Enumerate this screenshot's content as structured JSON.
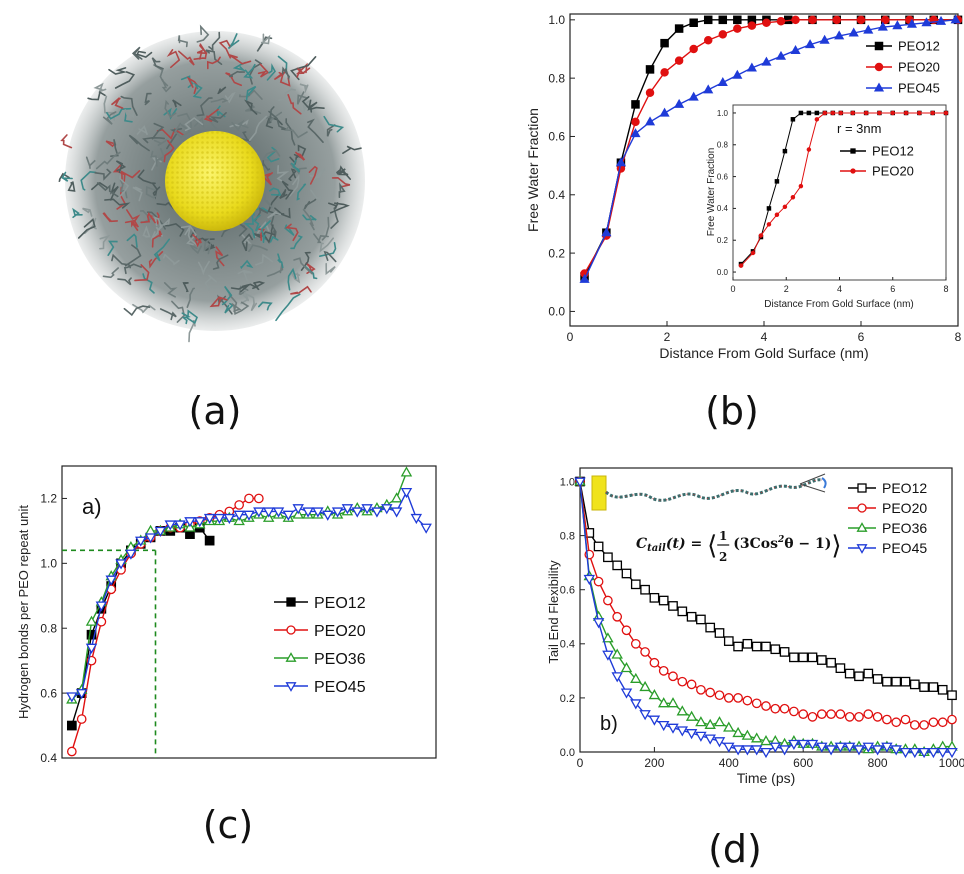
{
  "panels": {
    "a": {
      "label": "(a)",
      "image": "gold-nanoparticle-with-peo-chains"
    },
    "b": {
      "label": "(b)"
    },
    "c": {
      "label": "(c)"
    },
    "d": {
      "label": "(d)"
    }
  },
  "chart_data": [
    {
      "id": "b",
      "type": "line",
      "xlabel": "Distance From Gold Surface (nm)",
      "ylabel": "Free Water Fraction",
      "xlim": [
        0,
        8
      ],
      "ylim": [
        -0.05,
        1.02
      ],
      "xticks": [
        "0",
        "2",
        "4",
        "6",
        "8"
      ],
      "yticks": [
        "0.0",
        "0.2",
        "0.4",
        "0.6",
        "0.8",
        "1.0"
      ],
      "legend": "top-right",
      "series": [
        {
          "name": "PEO12",
          "color": "#000000",
          "marker": "square",
          "x": [
            0.3,
            0.75,
            1.05,
            1.35,
            1.65,
            1.95,
            2.25,
            2.55,
            2.85,
            3.15,
            3.45,
            3.75,
            4.05,
            4.5,
            5,
            5.5,
            6,
            6.5,
            7,
            7.5,
            8
          ],
          "y": [
            0.12,
            0.27,
            0.51,
            0.71,
            0.83,
            0.92,
            0.97,
            0.99,
            1.0,
            1.0,
            1.0,
            1.0,
            1.0,
            1.0,
            1.0,
            1.0,
            1.0,
            1.0,
            1.0,
            1.0,
            1.0
          ]
        },
        {
          "name": "PEO20",
          "color": "#e01010",
          "marker": "circle",
          "x": [
            0.3,
            0.75,
            1.05,
            1.35,
            1.65,
            1.95,
            2.25,
            2.55,
            2.85,
            3.15,
            3.45,
            3.75,
            4.05,
            4.35,
            4.65,
            5,
            5.5,
            6,
            6.5,
            7,
            7.5,
            8
          ],
          "y": [
            0.13,
            0.26,
            0.49,
            0.65,
            0.75,
            0.82,
            0.86,
            0.9,
            0.93,
            0.95,
            0.97,
            0.98,
            0.99,
            0.995,
            1.0,
            1.0,
            1.0,
            1.0,
            1.0,
            1.0,
            1.0,
            1.0
          ]
        },
        {
          "name": "PEO45",
          "color": "#1f3bd8",
          "marker": "triangle-up",
          "x": [
            0.3,
            0.75,
            1.05,
            1.35,
            1.65,
            1.95,
            2.25,
            2.55,
            2.85,
            3.15,
            3.45,
            3.75,
            4.05,
            4.35,
            4.65,
            4.95,
            5.25,
            5.55,
            5.85,
            6.15,
            6.45,
            6.75,
            7.05,
            7.35,
            7.65,
            7.95
          ],
          "y": [
            0.11,
            0.27,
            0.51,
            0.61,
            0.65,
            0.68,
            0.71,
            0.735,
            0.76,
            0.785,
            0.81,
            0.835,
            0.855,
            0.875,
            0.895,
            0.915,
            0.93,
            0.945,
            0.955,
            0.965,
            0.975,
            0.98,
            0.985,
            0.99,
            0.995,
            1.0
          ]
        }
      ],
      "inset": {
        "annotation": "r = 3nm",
        "xlabel": "Distance From Gold Surface (nm)",
        "ylabel": "Free Water Fraction",
        "xlim": [
          0,
          8
        ],
        "ylim": [
          -0.05,
          1.05
        ],
        "xticks": [
          "0",
          "2",
          "4",
          "6",
          "8"
        ],
        "yticks": [
          "0.0",
          "0.2",
          "0.4",
          "0.6",
          "0.8",
          "1.0"
        ],
        "series": [
          {
            "name": "PEO12",
            "color": "#000000",
            "x": [
              0.3,
              0.75,
              1.05,
              1.35,
              1.65,
              1.95,
              2.25,
              2.55,
              2.85,
              3.15,
              3.45,
              3.75,
              4.05,
              4.5,
              5,
              5.5,
              6,
              6.5,
              7,
              7.5,
              8
            ],
            "y": [
              0.05,
              0.13,
              0.22,
              0.4,
              0.57,
              0.76,
              0.96,
              1.0,
              1.0,
              1.0,
              1.0,
              1.0,
              1.0,
              1.0,
              1.0,
              1.0,
              1.0,
              1.0,
              1.0,
              1.0,
              1.0
            ]
          },
          {
            "name": "PEO20",
            "color": "#e01010",
            "x": [
              0.3,
              0.75,
              1.05,
              1.35,
              1.65,
              1.95,
              2.25,
              2.55,
              2.85,
              3.15,
              3.45,
              3.75,
              4.05,
              4.5,
              5,
              5.5,
              6,
              6.5,
              7,
              7.5,
              8
            ],
            "y": [
              0.04,
              0.12,
              0.23,
              0.3,
              0.36,
              0.41,
              0.47,
              0.54,
              0.77,
              0.96,
              1.0,
              1.0,
              1.0,
              1.0,
              1.0,
              1.0,
              1.0,
              1.0,
              1.0,
              1.0,
              1.0
            ]
          }
        ]
      }
    },
    {
      "id": "c",
      "type": "line",
      "ylabel": "Hydrogen bonds per PEO repeat unit",
      "xlim": [
        0,
        38
      ],
      "ylim": [
        0.4,
        1.3
      ],
      "yticks": [
        "0.4",
        "0.6",
        "0.8",
        "1.0",
        "1.2"
      ],
      "corner_label": "a)",
      "legend": "center-right",
      "reference_lines": {
        "y": 1.04,
        "x": 9.5
      },
      "series": [
        {
          "name": "PEO12",
          "color": "#000000",
          "marker": "square",
          "x": [
            1,
            2,
            3,
            4,
            5,
            6,
            7,
            8,
            9,
            10,
            11,
            12,
            13,
            14,
            15
          ],
          "y": [
            0.5,
            0.6,
            0.78,
            0.86,
            0.93,
            1.0,
            1.04,
            1.06,
            1.08,
            1.1,
            1.1,
            1.11,
            1.09,
            1.11,
            1.07
          ]
        },
        {
          "name": "PEO20",
          "color": "#e01010",
          "marker": "open-circle",
          "x": [
            1,
            2,
            3,
            4,
            5,
            6,
            7,
            8,
            9,
            10,
            11,
            12,
            13,
            14,
            15,
            16,
            17,
            18,
            19,
            20
          ],
          "y": [
            0.42,
            0.52,
            0.7,
            0.82,
            0.92,
            0.98,
            1.03,
            1.06,
            1.08,
            1.1,
            1.11,
            1.11,
            1.12,
            1.13,
            1.14,
            1.15,
            1.16,
            1.18,
            1.2,
            1.2
          ]
        },
        {
          "name": "PEO36",
          "color": "#2a9d2a",
          "marker": "open-triangle-up",
          "x": [
            1,
            2,
            3,
            4,
            5,
            6,
            7,
            8,
            9,
            10,
            11,
            12,
            13,
            14,
            15,
            16,
            17,
            18,
            19,
            20,
            21,
            22,
            23,
            24,
            25,
            26,
            27,
            28,
            29,
            30,
            31,
            32,
            33,
            34,
            35
          ],
          "y": [
            0.58,
            0.61,
            0.82,
            0.88,
            0.96,
            1.01,
            1.05,
            1.07,
            1.1,
            1.1,
            1.11,
            1.12,
            1.11,
            1.12,
            1.13,
            1.13,
            1.14,
            1.13,
            1.14,
            1.15,
            1.14,
            1.15,
            1.14,
            1.15,
            1.15,
            1.15,
            1.16,
            1.15,
            1.16,
            1.17,
            1.16,
            1.17,
            1.18,
            1.2,
            1.28
          ]
        },
        {
          "name": "PEO45",
          "color": "#1f3bd8",
          "marker": "open-triangle-down",
          "x": [
            1,
            2,
            3,
            4,
            5,
            6,
            7,
            8,
            9,
            10,
            11,
            12,
            13,
            14,
            15,
            16,
            17,
            18,
            19,
            20,
            21,
            22,
            23,
            24,
            25,
            26,
            27,
            28,
            29,
            30,
            31,
            32,
            33,
            34,
            35,
            36,
            37
          ],
          "y": [
            0.59,
            0.6,
            0.74,
            0.87,
            0.95,
            1.0,
            1.03,
            1.07,
            1.08,
            1.1,
            1.12,
            1.12,
            1.13,
            1.13,
            1.14,
            1.14,
            1.14,
            1.15,
            1.15,
            1.16,
            1.16,
            1.16,
            1.15,
            1.17,
            1.16,
            1.16,
            1.15,
            1.16,
            1.17,
            1.16,
            1.17,
            1.16,
            1.17,
            1.16,
            1.22,
            1.14,
            1.11
          ]
        }
      ]
    },
    {
      "id": "d",
      "type": "line",
      "xlabel": "Time (ps)",
      "ylabel": "Tail End Flexibility",
      "xlim": [
        0,
        1000
      ],
      "ylim": [
        0,
        1.05
      ],
      "xticks": [
        "0",
        "200",
        "400",
        "600",
        "800",
        "1000"
      ],
      "yticks": [
        "0.0",
        "0.2",
        "0.4",
        "0.6",
        "0.8",
        "1.0"
      ],
      "corner_label": "b)",
      "formula": {
        "lhs": "C",
        "lhs_sub": "tail",
        "lhs_arg": "(t) = ",
        "lang": "⟨",
        "frac_num": "1",
        "frac_den": "2",
        "body": "(3Cos",
        "sup": "2",
        "body_end": "θ − 1)",
        "rang": "⟩"
      },
      "legend": "top-right",
      "series": [
        {
          "name": "PEO12",
          "color": "#000000",
          "marker": "open-square",
          "x": [
            0,
            25,
            50,
            75,
            100,
            125,
            150,
            175,
            200,
            225,
            250,
            275,
            300,
            325,
            350,
            375,
            400,
            425,
            450,
            475,
            500,
            525,
            550,
            575,
            600,
            625,
            650,
            675,
            700,
            725,
            750,
            775,
            800,
            825,
            850,
            875,
            900,
            925,
            950,
            975,
            1000
          ],
          "y": [
            1.0,
            0.81,
            0.76,
            0.72,
            0.69,
            0.66,
            0.62,
            0.6,
            0.57,
            0.56,
            0.54,
            0.52,
            0.5,
            0.49,
            0.46,
            0.44,
            0.41,
            0.39,
            0.4,
            0.39,
            0.39,
            0.38,
            0.37,
            0.35,
            0.35,
            0.35,
            0.34,
            0.33,
            0.31,
            0.29,
            0.28,
            0.29,
            0.27,
            0.26,
            0.26,
            0.26,
            0.25,
            0.24,
            0.24,
            0.23,
            0.21
          ]
        },
        {
          "name": "PEO20",
          "color": "#e01010",
          "marker": "open-circle",
          "x": [
            0,
            25,
            50,
            75,
            100,
            125,
            150,
            175,
            200,
            225,
            250,
            275,
            300,
            325,
            350,
            375,
            400,
            425,
            450,
            475,
            500,
            525,
            550,
            575,
            600,
            625,
            650,
            675,
            700,
            725,
            750,
            775,
            800,
            825,
            850,
            875,
            900,
            925,
            950,
            975,
            1000
          ],
          "y": [
            1.0,
            0.73,
            0.63,
            0.56,
            0.5,
            0.45,
            0.4,
            0.37,
            0.33,
            0.3,
            0.28,
            0.26,
            0.25,
            0.23,
            0.22,
            0.21,
            0.2,
            0.2,
            0.19,
            0.18,
            0.17,
            0.16,
            0.16,
            0.15,
            0.14,
            0.13,
            0.14,
            0.14,
            0.14,
            0.13,
            0.13,
            0.14,
            0.13,
            0.12,
            0.11,
            0.12,
            0.1,
            0.1,
            0.11,
            0.11,
            0.12
          ]
        },
        {
          "name": "PEO36",
          "color": "#2a9d2a",
          "marker": "open-triangle-up",
          "x": [
            0,
            25,
            50,
            75,
            100,
            125,
            150,
            175,
            200,
            225,
            250,
            275,
            300,
            325,
            350,
            375,
            400,
            425,
            450,
            475,
            500,
            525,
            550,
            575,
            600,
            625,
            650,
            675,
            700,
            725,
            750,
            775,
            800,
            825,
            850,
            875,
            900,
            925,
            950,
            975,
            1000
          ],
          "y": [
            1.0,
            0.65,
            0.5,
            0.42,
            0.36,
            0.31,
            0.27,
            0.24,
            0.21,
            0.18,
            0.18,
            0.15,
            0.13,
            0.11,
            0.1,
            0.11,
            0.09,
            0.07,
            0.06,
            0.05,
            0.04,
            0.04,
            0.03,
            0.04,
            0.03,
            0.03,
            0.02,
            0.02,
            0.02,
            0.02,
            0.02,
            0.01,
            0.02,
            0.02,
            0.01,
            0.01,
            0.01,
            0.0,
            0.01,
            0.02,
            0.02
          ]
        },
        {
          "name": "PEO45",
          "color": "#1f3bd8",
          "marker": "open-triangle-down",
          "x": [
            0,
            25,
            50,
            75,
            100,
            125,
            150,
            175,
            200,
            225,
            250,
            275,
            300,
            325,
            350,
            375,
            400,
            425,
            450,
            475,
            500,
            525,
            550,
            575,
            600,
            625,
            650,
            675,
            700,
            725,
            750,
            775,
            800,
            825,
            850,
            875,
            900,
            925,
            950,
            975,
            1000
          ],
          "y": [
            1.0,
            0.64,
            0.48,
            0.36,
            0.28,
            0.22,
            0.18,
            0.14,
            0.12,
            0.1,
            0.09,
            0.08,
            0.07,
            0.06,
            0.05,
            0.04,
            0.02,
            0.01,
            0.01,
            0.01,
            0.0,
            0.02,
            0.01,
            0.03,
            0.03,
            0.03,
            0.02,
            0.01,
            0.02,
            0.02,
            0.01,
            0.02,
            0.01,
            0.02,
            0.01,
            0.0,
            0.0,
            0.0,
            0.0,
            0.0,
            0.0
          ]
        }
      ]
    }
  ]
}
